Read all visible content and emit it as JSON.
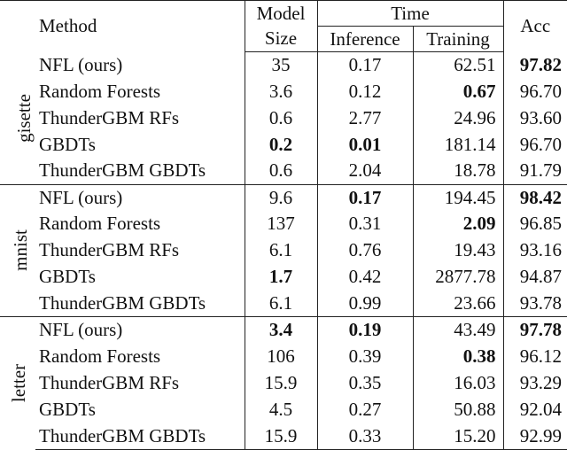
{
  "header": {
    "method": "Method",
    "model_size_line1": "Model",
    "model_size_line2": "Size",
    "time": "Time",
    "inference": "Inference",
    "training": "Training",
    "acc": "Acc"
  },
  "groups": [
    {
      "dataset": "gisette",
      "rows": [
        {
          "method": "NFL (ours)",
          "size": "35",
          "inference": "0.17",
          "training": "62.51",
          "acc": "97.82",
          "bold": [
            "acc"
          ]
        },
        {
          "method": "Random Forests",
          "size": "3.6",
          "inference": "0.12",
          "training": "0.67",
          "acc": "96.70",
          "bold": [
            "training"
          ]
        },
        {
          "method": "ThunderGBM RFs",
          "size": "0.6",
          "inference": "2.77",
          "training": "24.96",
          "acc": "93.60",
          "bold": []
        },
        {
          "method": "GBDTs",
          "size": "0.2",
          "inference": "0.01",
          "training": "181.14",
          "acc": "96.70",
          "bold": [
            "size",
            "inference"
          ]
        },
        {
          "method": "ThunderGBM GBDTs",
          "size": "0.6",
          "inference": "2.04",
          "training": "18.78",
          "acc": "91.79",
          "bold": []
        }
      ]
    },
    {
      "dataset": "mnist",
      "rows": [
        {
          "method": "NFL (ours)",
          "size": "9.6",
          "inference": "0.17",
          "training": "194.45",
          "acc": "98.42",
          "bold": [
            "inference",
            "acc"
          ]
        },
        {
          "method": "Random Forests",
          "size": "137",
          "inference": "0.31",
          "training": "2.09",
          "acc": "96.85",
          "bold": [
            "training"
          ]
        },
        {
          "method": "ThunderGBM RFs",
          "size": "6.1",
          "inference": "0.76",
          "training": "19.43",
          "acc": "93.16",
          "bold": []
        },
        {
          "method": "GBDTs",
          "size": "1.7",
          "inference": "0.42",
          "training": "2877.78",
          "acc": "94.87",
          "bold": [
            "size"
          ]
        },
        {
          "method": "ThunderGBM GBDTs",
          "size": "6.1",
          "inference": "0.99",
          "training": "23.66",
          "acc": "93.78",
          "bold": []
        }
      ]
    },
    {
      "dataset": "letter",
      "rows": [
        {
          "method": "NFL (ours)",
          "size": "3.4",
          "inference": "0.19",
          "training": "43.49",
          "acc": "97.78",
          "bold": [
            "size",
            "inference",
            "acc"
          ]
        },
        {
          "method": "Random Forests",
          "size": "106",
          "inference": "0.39",
          "training": "0.38",
          "acc": "96.12",
          "bold": [
            "training"
          ]
        },
        {
          "method": "ThunderGBM RFs",
          "size": "15.9",
          "inference": "0.35",
          "training": "16.03",
          "acc": "93.29",
          "bold": []
        },
        {
          "method": "GBDTs",
          "size": "4.5",
          "inference": "0.27",
          "training": "50.88",
          "acc": "92.04",
          "bold": []
        },
        {
          "method": "ThunderGBM GBDTs",
          "size": "15.9",
          "inference": "0.33",
          "training": "15.20",
          "acc": "92.99",
          "bold": []
        }
      ]
    }
  ]
}
